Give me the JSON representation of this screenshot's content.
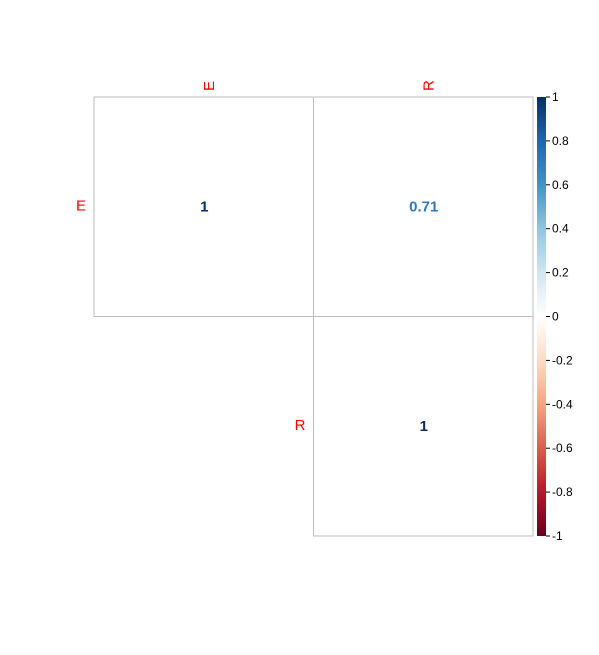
{
  "chart_data": {
    "type": "heatmap",
    "subtype": "correlation-matrix-upper",
    "variables": [
      "E",
      "R"
    ],
    "matrix": [
      [
        1,
        0.71
      ],
      [
        null,
        1
      ]
    ],
    "value_labels": [
      [
        "1",
        "0.71"
      ],
      [
        "",
        "1"
      ]
    ],
    "label_color": "#ff0000",
    "color_scale": {
      "min": -1,
      "max": 1,
      "ticks": [
        1,
        0.8,
        0.6,
        0.4,
        0.2,
        0,
        -0.2,
        -0.4,
        -0.6,
        -0.8,
        -1
      ],
      "tick_labels": [
        "1",
        "0.8",
        "0.6",
        "0.4",
        "0.2",
        "0",
        "-0.2",
        "-0.4",
        "-0.6",
        "-0.8",
        "-1"
      ],
      "colors": [
        "#67001f",
        "#b2182b",
        "#d6604d",
        "#f4a582",
        "#fddbc7",
        "#ffffff",
        "#d1e5f0",
        "#92c5de",
        "#4393c3",
        "#2166ac",
        "#053061"
      ]
    },
    "grid": true,
    "legend": "right",
    "title": "",
    "xlabel": "",
    "ylabel": ""
  }
}
